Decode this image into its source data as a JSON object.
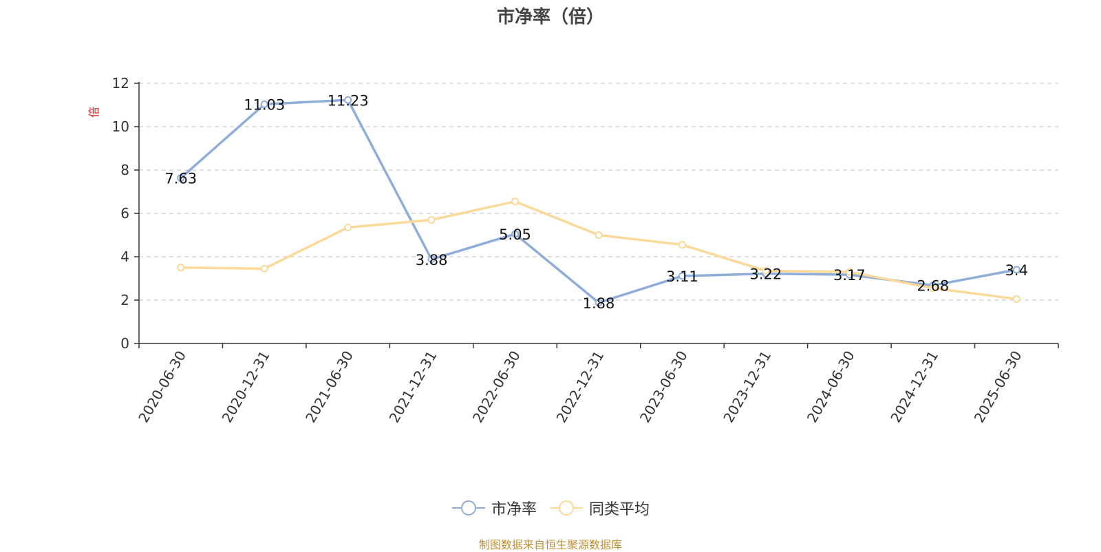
{
  "chart_data": {
    "type": "line",
    "title": "市净率（倍）",
    "ylabel": "倍",
    "ylim": [
      0,
      12
    ],
    "yticks": [
      0,
      2,
      4,
      6,
      8,
      10,
      12
    ],
    "grid": true,
    "legend_position": "bottom",
    "categories": [
      "2020-06-30",
      "2020-12-31",
      "2021-06-30",
      "2021-12-31",
      "2022-06-30",
      "2022-12-31",
      "2023-06-30",
      "2023-12-31",
      "2024-06-30",
      "2024-12-31",
      "2025-06-30"
    ],
    "series": [
      {
        "name": "市净率",
        "color": "#8eadd9",
        "show_labels": true,
        "values": [
          7.63,
          11.03,
          11.23,
          3.88,
          5.05,
          1.88,
          3.11,
          3.22,
          3.17,
          2.68,
          3.4
        ]
      },
      {
        "name": "同类平均",
        "color": "#fbd998",
        "show_labels": false,
        "values": [
          3.5,
          3.45,
          5.35,
          5.7,
          6.55,
          5.0,
          4.55,
          3.35,
          3.3,
          2.55,
          2.05
        ]
      }
    ]
  },
  "source_note": "制图数据来自恒生聚源数据库",
  "colors": {
    "ylabel": "#e02020",
    "axis": "#333333",
    "grid": "#cccccc",
    "source": "#c0913a"
  }
}
